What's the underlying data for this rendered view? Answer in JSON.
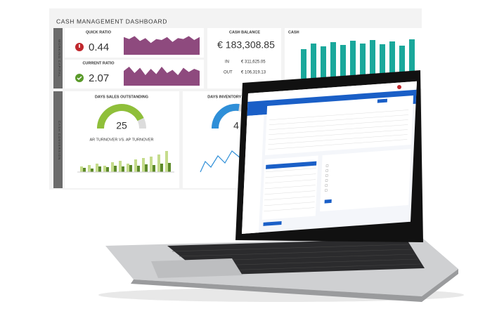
{
  "dashboard": {
    "title": "CASH MANAGEMENT DASHBOARD",
    "side_labels": [
      "WORKING CAPITAL",
      "CASH CONVERSION"
    ],
    "quick_ratio": {
      "label": "QUICK RATIO",
      "value": "0.44"
    },
    "current_ratio": {
      "label": "CURRENT RATIO",
      "value": "2.07"
    },
    "cash_balance": {
      "label": "CASH BALANCE",
      "value": "€ 183,308.85",
      "in_label": "IN",
      "in_value": "€ 311,625.05",
      "out_label": "OUT",
      "out_value": "€ 106,319.13"
    },
    "cash": {
      "label": "CASH"
    },
    "dso": {
      "label": "DAYS SALES OUTSTANDING",
      "value": "25",
      "subtitle": "AR TURNOVER VS. AP TURNOVER"
    },
    "dio": {
      "label": "DAYS INVENTORY OUTSTANDING",
      "value": "4"
    }
  }
}
